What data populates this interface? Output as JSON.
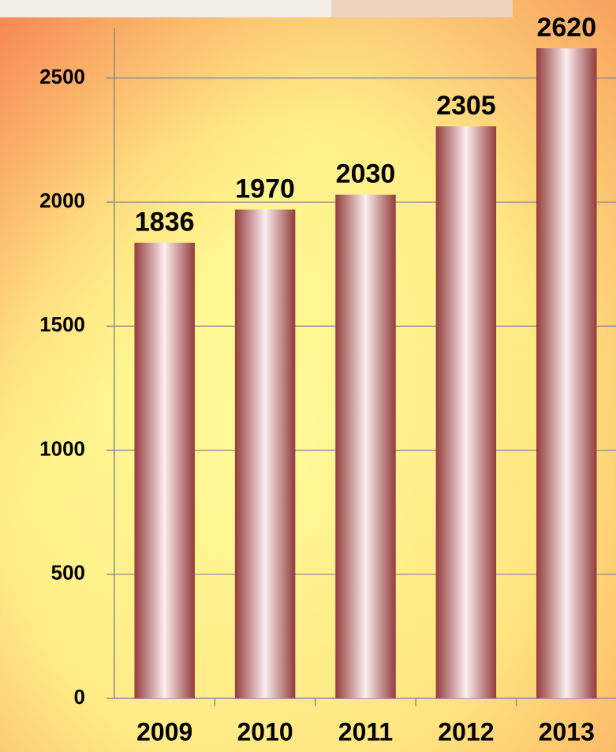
{
  "chart_data": {
    "type": "bar",
    "categories": [
      "2009",
      "2010",
      "2011",
      "2012",
      "2013"
    ],
    "values": [
      1836,
      1970,
      2030,
      2305,
      2620
    ],
    "color": "#943c3c",
    "ylim": [
      0,
      2700
    ],
    "yticks": [
      0,
      500,
      1000,
      1500,
      2000,
      2500
    ],
    "grid": true
  }
}
